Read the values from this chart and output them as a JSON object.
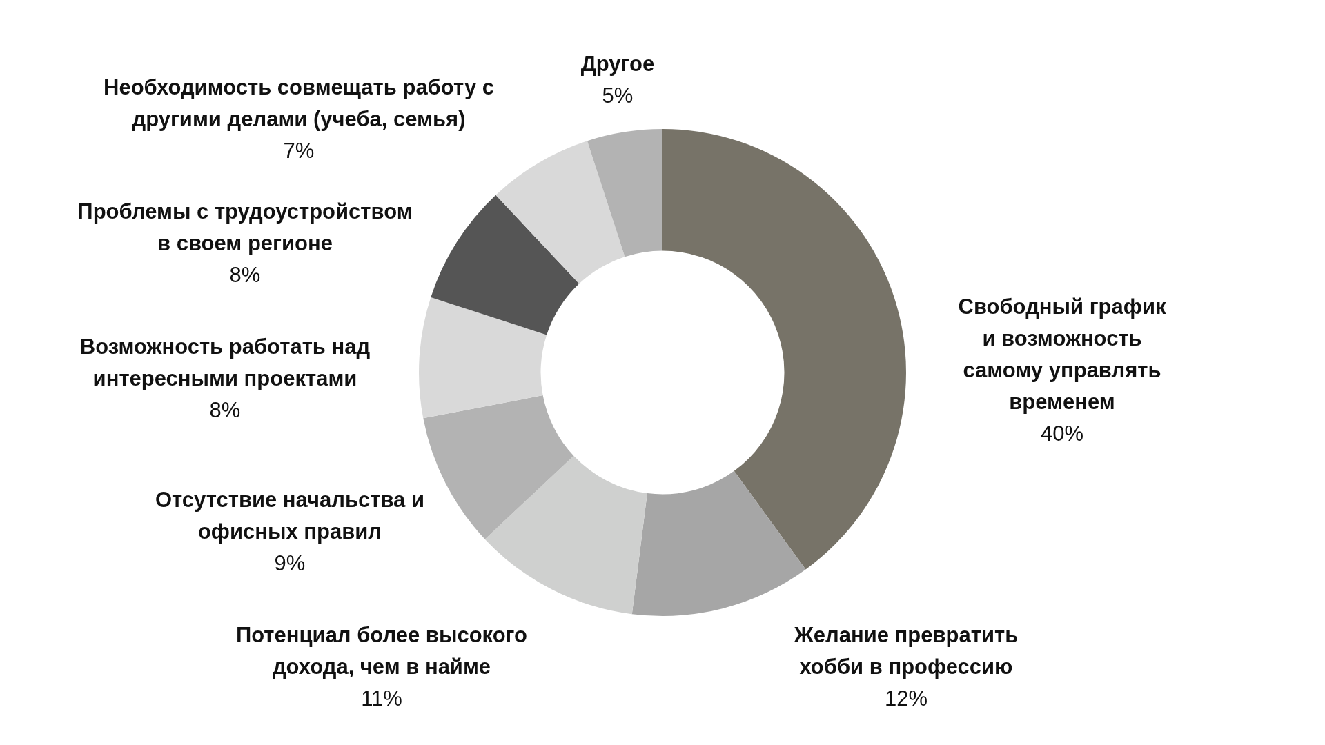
{
  "chart_data": {
    "type": "donut",
    "categories": [
      "Свободный график и возможность самому управлять временем",
      "Желание превратить хобби в профессию",
      "Потенциал более высокого дохода, чем в найме",
      "Отсутствие начальства и офисных правил",
      "Возможность работать над интересными проектами",
      "Проблемы с трудоустройством в своем регионе",
      "Необходимость совмещать работу с другими делами (учеба, семья)",
      "Другое"
    ],
    "values": [
      40,
      12,
      11,
      9,
      8,
      8,
      7,
      5
    ],
    "colors": [
      "#777368",
      "#a6a6a6",
      "#cfd0cf",
      "#b3b3b3",
      "#d9d9d9",
      "#555555",
      "#d9d9d9",
      "#b3b3b3"
    ],
    "value_labels": [
      "40%",
      "12%",
      "11%",
      "9%",
      "8%",
      "8%",
      "7%",
      "5%"
    ]
  }
}
